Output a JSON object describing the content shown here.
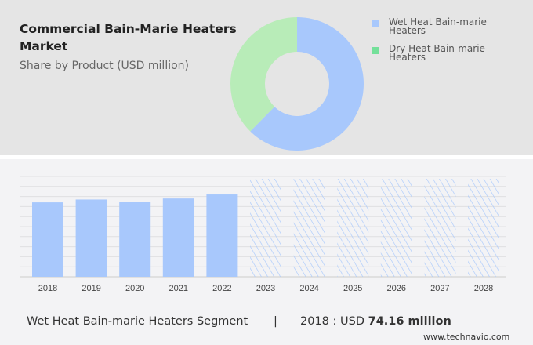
{
  "header": {
    "title": "Commercial Bain-Marie Heaters Market",
    "subtitle": "Share by Product (USD million)"
  },
  "chart_data": [
    {
      "type": "pie",
      "style": "donut",
      "title": "Commercial Bain-Marie Heaters Market",
      "subtitle": "Share by Product (USD million)",
      "series": [
        {
          "name": "Wet Heat Bain-marie Heaters",
          "value": 62.4,
          "color": "#a8c8fc"
        },
        {
          "name": "Dry Heat Bain-marie Heaters",
          "value": 37.6,
          "color": "#b8ecb8"
        }
      ],
      "legend_colors": [
        "#a8c8fc",
        "#74e09a"
      ],
      "legend": "right"
    },
    {
      "type": "bar",
      "categories": [
        "2018",
        "2019",
        "2020",
        "2021",
        "2022",
        "2023",
        "2024",
        "2025",
        "2026",
        "2027",
        "2028"
      ],
      "values": [
        74.16,
        77.0,
        74.4,
        78.0,
        82.0,
        null,
        null,
        null,
        null,
        null,
        null
      ],
      "forecast": [
        "2023",
        "2024",
        "2025",
        "2026",
        "2027",
        "2028"
      ],
      "ylim": [
        0,
        100
      ],
      "grid": true,
      "color": "#a8c8fc"
    }
  ],
  "footer": {
    "segment": "Wet Heat Bain-marie Heaters Segment",
    "separator": "|",
    "year_prefix": "2018 : USD ",
    "value": "74.16 million",
    "url": "www.technavio.com"
  }
}
